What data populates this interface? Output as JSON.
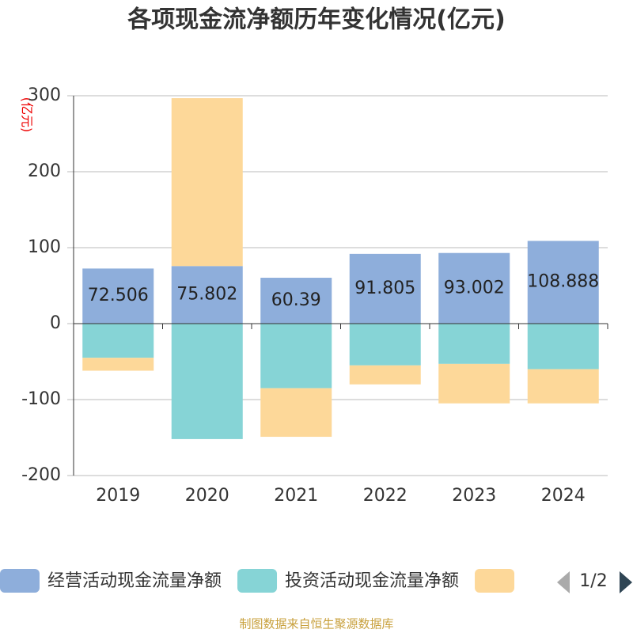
{
  "chart_data": {
    "type": "bar",
    "stacked": true,
    "title": "各项现金流净额历年变化情况(亿元)",
    "y_unit": "(亿元)",
    "categories": [
      "2019",
      "2020",
      "2021",
      "2022",
      "2023",
      "2024"
    ],
    "series": [
      {
        "name": "经营活动现金流量净额",
        "color": "#8eaedb",
        "values": [
          72.506,
          75.802,
          60.39,
          91.805,
          93.002,
          108.888
        ],
        "show_labels": true
      },
      {
        "name": "投资活动现金流量净额",
        "color": "#86d4d6",
        "values": [
          -45,
          -152,
          -85,
          -55,
          -53,
          -60
        ]
      },
      {
        "color": "#fdd899",
        "values": [
          -17,
          221,
          -64,
          -25,
          -52,
          -45
        ]
      }
    ],
    "ylim": [
      -200,
      300
    ],
    "yticks": [
      -200,
      -100,
      0,
      100,
      200,
      300
    ],
    "grid": true,
    "legend_page": "1/2",
    "source": "制图数据来自恒生聚源数据库"
  }
}
